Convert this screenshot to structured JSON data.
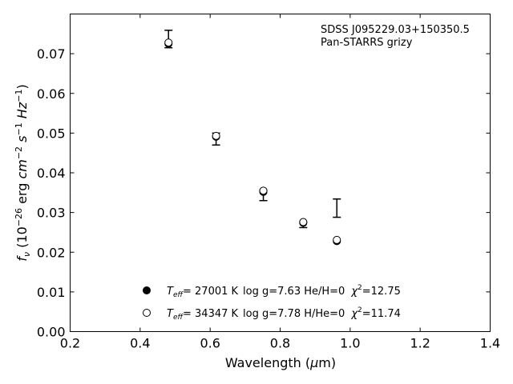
{
  "chart_data": {
    "type": "scatter",
    "title": "",
    "xlabel": "Wavelength (μm)",
    "ylabel": "f_ν (10^-26 erg cm^-2 s^-1 Hz^-1)",
    "xlim": [
      0.2,
      1.4
    ],
    "ylim": [
      0.0,
      0.08
    ],
    "xticks": [
      0.2,
      0.4,
      0.6,
      0.8,
      1.0,
      1.2,
      1.4
    ],
    "xtick_labels": [
      "0.2",
      "0.4",
      "0.6",
      "0.8",
      "1.0",
      "1.2",
      "1.4"
    ],
    "yticks": [
      0.0,
      0.01,
      0.02,
      0.03,
      0.04,
      0.05,
      0.06,
      0.07
    ],
    "ytick_labels": [
      "0.00",
      "0.01",
      "0.02",
      "0.03",
      "0.04",
      "0.05",
      "0.06",
      "0.07"
    ],
    "grid": false,
    "annotation": [
      "SDSS J095229.03+150350.5",
      "Pan-STARRS grizy"
    ],
    "annotation_placement": "top-right",
    "observed": {
      "x": [
        0.481,
        0.617,
        0.752,
        0.866,
        0.962
      ],
      "y": [
        0.0737,
        0.0485,
        0.0343,
        0.0269,
        0.0311
      ],
      "yerr_low": [
        0.0022,
        0.0015,
        0.0013,
        0.0007,
        0.0023
      ],
      "yerr_high": [
        0.0022,
        0.0015,
        0.0013,
        0.0007,
        0.0023
      ]
    },
    "series": [
      {
        "marker": "filled-circle",
        "color": "#000000",
        "x": [
          0.481,
          0.617,
          0.752,
          0.866,
          0.962
        ],
        "y": [
          0.0725,
          0.0491,
          0.0352,
          0.0274,
          0.0228
        ],
        "legend": {
          "teff": "= 27001 K",
          "params": "log g=7.63  He/H=0",
          "chi": "=12.75"
        }
      },
      {
        "marker": "open-circle",
        "color": "#000000",
        "x": [
          0.481,
          0.617,
          0.752,
          0.866,
          0.962
        ],
        "y": [
          0.0728,
          0.0493,
          0.0355,
          0.0276,
          0.0231
        ],
        "legend": {
          "teff": "= 34347 K",
          "params": "log g=7.78  H/He=0",
          "chi": "=11.74"
        }
      }
    ],
    "legend_placement": "lower-center"
  }
}
